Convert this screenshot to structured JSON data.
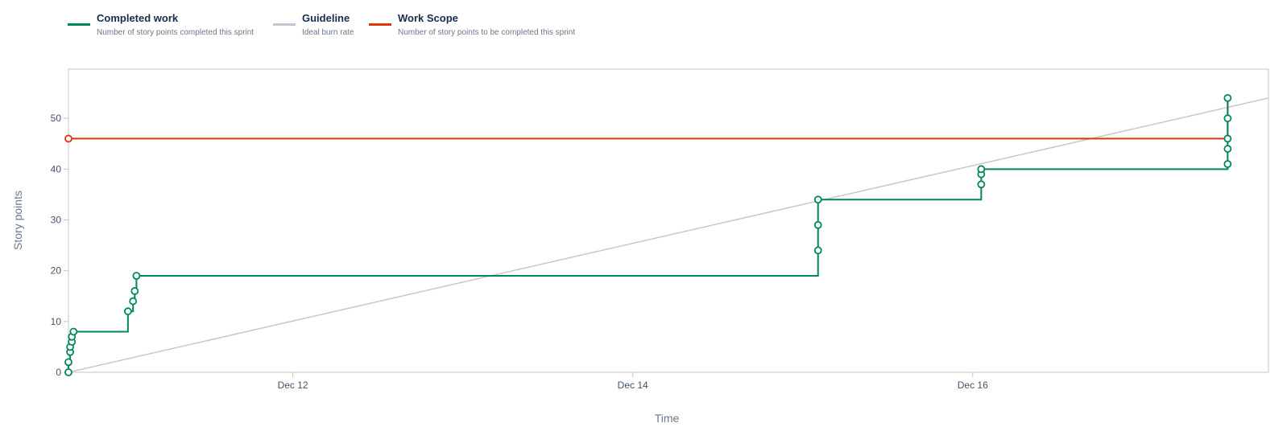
{
  "legend": {
    "items": [
      {
        "name": "Completed work",
        "description": "Number of story points completed this sprint",
        "color": "#00875a"
      },
      {
        "name": "Guideline",
        "description": "Ideal burn rate",
        "color": "#c1c7d0"
      },
      {
        "name": "Work Scope",
        "description": "Number of story points to be completed this sprint",
        "color": "#de350b"
      }
    ]
  },
  "chart_data": {
    "type": "line",
    "xlabel": "Time",
    "ylabel": "Story points",
    "x_unit": "days",
    "xlim": [
      10.68,
      17.74
    ],
    "ylim": [
      0,
      60
    ],
    "x_ticks": [
      {
        "value": 12,
        "label": "Dec 12"
      },
      {
        "value": 14,
        "label": "Dec 14"
      },
      {
        "value": 16,
        "label": "Dec 16"
      }
    ],
    "y_ticks": [
      0,
      10,
      20,
      30,
      40,
      50
    ],
    "grid": false,
    "legend_position": "top-left",
    "series": [
      {
        "name": "Work Scope",
        "color": "#de350b",
        "step": true,
        "points": [
          [
            10.68,
            46
          ],
          [
            17.5,
            46
          ],
          [
            17.5,
            50
          ],
          [
            17.5,
            54
          ]
        ],
        "markers": [
          [
            10.68,
            46
          ]
        ]
      },
      {
        "name": "Completed work",
        "color": "#00875a",
        "step": true,
        "points": [
          [
            10.68,
            0
          ],
          [
            10.68,
            2
          ],
          [
            10.69,
            4
          ],
          [
            10.69,
            5
          ],
          [
            10.7,
            6
          ],
          [
            10.7,
            7
          ],
          [
            10.71,
            8
          ],
          [
            11.03,
            8
          ],
          [
            11.03,
            12
          ],
          [
            11.06,
            14
          ],
          [
            11.07,
            16
          ],
          [
            11.08,
            19
          ],
          [
            15.09,
            19
          ],
          [
            15.09,
            24
          ],
          [
            15.09,
            29
          ],
          [
            15.09,
            34
          ],
          [
            16.05,
            34
          ],
          [
            16.05,
            37
          ],
          [
            16.05,
            39
          ],
          [
            16.05,
            40
          ],
          [
            17.5,
            40
          ],
          [
            17.5,
            41
          ],
          [
            17.5,
            44
          ],
          [
            17.5,
            46
          ],
          [
            17.5,
            50
          ],
          [
            17.5,
            54
          ]
        ],
        "markers": [
          [
            10.68,
            0
          ],
          [
            10.68,
            2
          ],
          [
            10.69,
            4
          ],
          [
            10.69,
            5
          ],
          [
            10.7,
            6
          ],
          [
            10.7,
            7
          ],
          [
            10.71,
            8
          ],
          [
            11.03,
            12
          ],
          [
            11.06,
            14
          ],
          [
            11.07,
            16
          ],
          [
            11.08,
            19
          ],
          [
            15.09,
            24
          ],
          [
            15.09,
            29
          ],
          [
            15.09,
            34
          ],
          [
            16.05,
            37
          ],
          [
            16.05,
            39
          ],
          [
            16.05,
            40
          ],
          [
            17.5,
            41
          ],
          [
            17.5,
            44
          ],
          [
            17.5,
            46
          ],
          [
            17.5,
            50
          ],
          [
            17.5,
            54
          ]
        ]
      },
      {
        "name": "Guideline",
        "color": "#c8c8c8",
        "step": false,
        "points": [
          [
            10.68,
            0
          ],
          [
            17.74,
            54
          ]
        ],
        "markers": []
      }
    ]
  }
}
